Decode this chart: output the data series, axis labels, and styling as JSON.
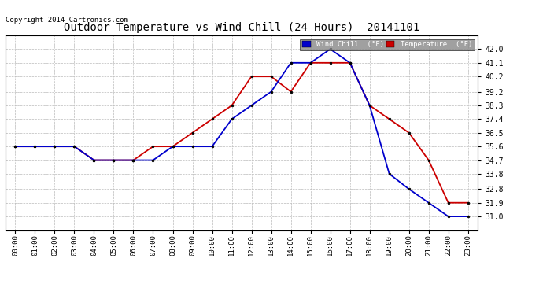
{
  "title": "Outdoor Temperature vs Wind Chill (24 Hours)  20141101",
  "copyright": "Copyright 2014 Cartronics.com",
  "hours": [
    "00:00",
    "01:00",
    "02:00",
    "03:00",
    "04:00",
    "05:00",
    "06:00",
    "07:00",
    "08:00",
    "09:00",
    "10:00",
    "11:00",
    "12:00",
    "13:00",
    "14:00",
    "15:00",
    "16:00",
    "17:00",
    "18:00",
    "19:00",
    "20:00",
    "21:00",
    "22:00",
    "23:00"
  ],
  "temperature": [
    35.6,
    35.6,
    35.6,
    35.6,
    34.7,
    34.7,
    34.7,
    35.6,
    35.6,
    36.5,
    37.4,
    38.3,
    40.2,
    40.2,
    39.2,
    41.1,
    41.1,
    41.1,
    38.3,
    37.4,
    36.5,
    34.7,
    31.9,
    31.9
  ],
  "wind_chill": [
    35.6,
    35.6,
    35.6,
    35.6,
    34.7,
    34.7,
    34.7,
    34.7,
    35.6,
    35.6,
    35.6,
    37.4,
    38.3,
    39.2,
    41.1,
    41.1,
    42.0,
    41.1,
    38.3,
    33.8,
    32.8,
    31.9,
    31.0,
    31.0
  ],
  "ylim_min": 30.1,
  "ylim_max": 42.9,
  "yticks": [
    31.0,
    31.9,
    32.8,
    33.8,
    34.7,
    35.6,
    36.5,
    37.4,
    38.3,
    39.2,
    40.2,
    41.1,
    42.0
  ],
  "temp_color": "#cc0000",
  "wind_color": "#0000cc",
  "background_color": "#ffffff",
  "grid_color": "#bbbbbb",
  "legend_wind_bg": "#0000cc",
  "legend_temp_bg": "#cc0000",
  "legend_text_color": "#ffffff",
  "fig_width": 6.9,
  "fig_height": 3.75,
  "dpi": 100
}
